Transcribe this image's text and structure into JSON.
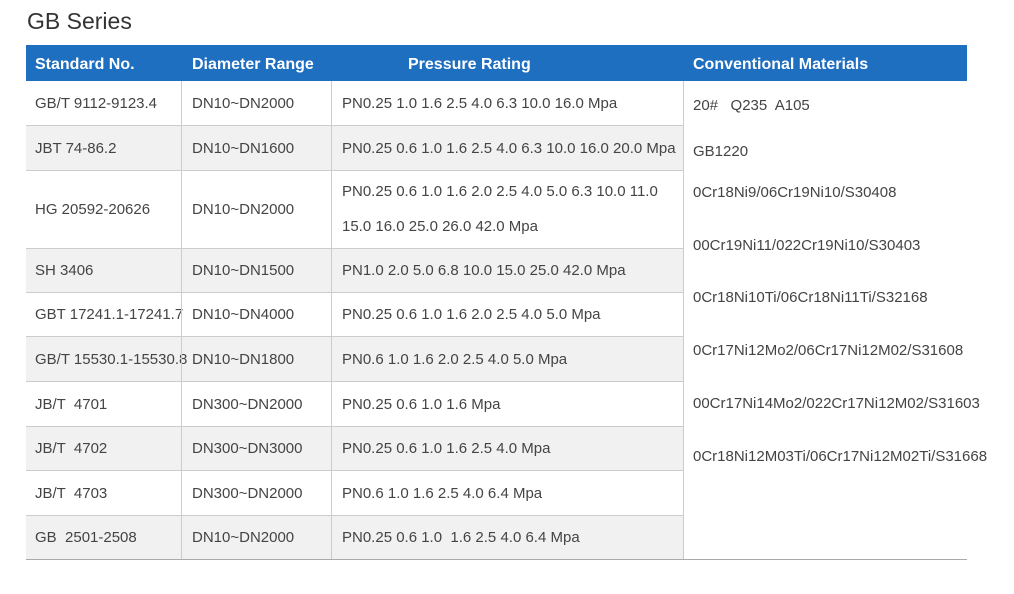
{
  "title": "GB Series",
  "table": {
    "headers": [
      "Standard No.",
      "Diameter Range",
      "Pressure Rating",
      "Conventional Materials"
    ],
    "rows": [
      [
        "GB/T 9112-9123.4",
        "DN10~DN2000",
        "PN0.25 1.0 1.6 2.5 4.0 6.3 10.0 16.0 Mpa"
      ],
      [
        "JBT 74-86.2",
        "DN10~DN1600",
        "PN0.25 0.6 1.0 1.6 2.5 4.0 6.3 10.0 16.0 20.0 Mpa"
      ],
      [
        "HG 20592-20626",
        "DN10~DN2000",
        [
          "PN0.25 0.6 1.0 1.6 2.0 2.5 4.0 5.0 6.3 10.0 11.0",
          "15.0 16.0 25.0 26.0 42.0 Mpa"
        ]
      ],
      [
        "SH 3406",
        "DN10~DN1500",
        "PN1.0 2.0 5.0 6.8 10.0 15.0 25.0 42.0 Mpa"
      ],
      [
        "GBT 17241.1-17241.7",
        "DN10~DN4000",
        "PN0.25 0.6 1.0 1.6 2.0 2.5 4.0 5.0 Mpa"
      ],
      [
        "GB/T 15530.1-15530.8",
        "DN10~DN1800",
        "PN0.6 1.0 1.6 2.0 2.5 4.0 5.0 Mpa"
      ],
      [
        "JB/T  4701",
        "DN300~DN2000",
        "PN0.25 0.6 1.0 1.6 Mpa"
      ],
      [
        "JB/T  4702",
        "DN300~DN3000",
        "PN0.25 0.6 1.0 1.6 2.5 4.0 Mpa"
      ],
      [
        "JB/T  4703",
        "DN300~DN2000",
        "PN0.6 1.0 1.6 2.5 4.0 6.4 Mpa"
      ],
      [
        "GB  2501-2508",
        "DN10~DN2000",
        "PN0.25 0.6 1.0  1.6 2.5 4.0 6.4 Mpa"
      ]
    ],
    "materials": [
      "20#   Q235  A105",
      "GB1220",
      "0Cr18Ni9/06Cr19Ni10/S30408",
      "00Cr19Ni11/022Cr19Ni10/S30403",
      "0Cr18Ni10Ti/06Cr18Ni11Ti/S32168",
      "0Cr17Ni12Mo2/06Cr17Ni12M02/S31608",
      "00Cr17Ni14Mo2/022Cr17Ni12M02/S31603",
      "0Cr18Ni12M03Ti/06Cr17Ni12M02Ti/S31668"
    ]
  }
}
